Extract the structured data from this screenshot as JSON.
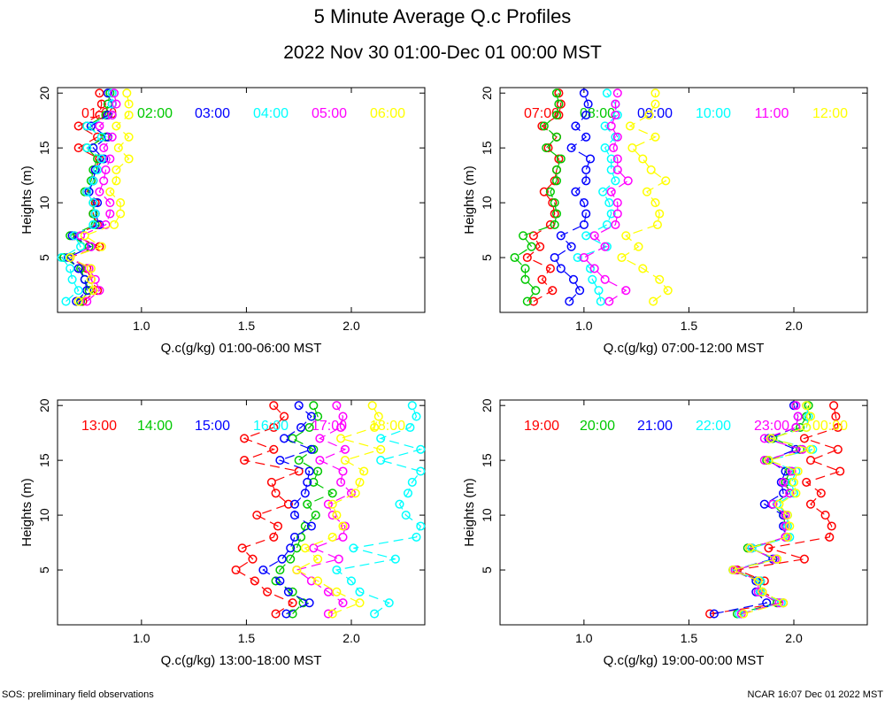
{
  "figure": {
    "title": "5 Minute Average Q.c Profiles",
    "subtitle": "2022 Nov 30 01:00-Dec 01 00:00 MST",
    "footer_left": "SOS: preliminary field observations",
    "footer_right": "NCAR 16:07 Dec 01 2022 MST"
  },
  "chart_data": [
    {
      "type": "line",
      "marker": "circle",
      "title": "",
      "xlabel": "Q.c(g/kg) 01:00-06:00 MST",
      "ylabel": "Heights (m)",
      "xlim": [
        0.6,
        2.35
      ],
      "ylim": [
        0,
        20.5
      ],
      "xticks": [
        "1.0",
        "1.5",
        "2.0"
      ],
      "yticks": [
        "5",
        "10",
        "15",
        "20"
      ],
      "heights": [
        1,
        2,
        3,
        4,
        5,
        6,
        7,
        8,
        9,
        10,
        11,
        12,
        13,
        14,
        15,
        16,
        17,
        18,
        19,
        20
      ],
      "series": [
        {
          "name": "01:00",
          "color": "#ff0000",
          "values": [
            0.72,
            0.79,
            0.76,
            0.74,
            0.66,
            0.8,
            0.68,
            0.79,
            0.77,
            0.78,
            0.74,
            0.77,
            0.78,
            0.8,
            0.7,
            0.79,
            0.7,
            0.8,
            0.81,
            0.8
          ]
        },
        {
          "name": "02:00",
          "color": "#00c800",
          "values": [
            0.71,
            0.75,
            0.73,
            0.71,
            0.63,
            0.75,
            0.66,
            0.78,
            0.77,
            0.77,
            0.73,
            0.76,
            0.77,
            0.79,
            0.74,
            0.83,
            0.74,
            0.83,
            0.84,
            0.85
          ]
        },
        {
          "name": "03:00",
          "color": "#0000ff",
          "values": [
            0.69,
            0.74,
            0.73,
            0.7,
            0.65,
            0.76,
            0.67,
            0.8,
            0.78,
            0.79,
            0.75,
            0.77,
            0.78,
            0.82,
            0.77,
            0.84,
            0.76,
            0.84,
            0.86,
            0.84
          ]
        },
        {
          "name": "04:00",
          "color": "#00ffff",
          "values": [
            0.64,
            0.7,
            0.67,
            0.66,
            0.62,
            0.71,
            0.68,
            0.77,
            0.78,
            0.77,
            0.74,
            0.77,
            0.79,
            0.81,
            0.74,
            0.81,
            0.74,
            0.86,
            0.86,
            0.86
          ]
        },
        {
          "name": "05:00",
          "color": "#ff00ff",
          "values": [
            0.74,
            0.8,
            0.78,
            0.75,
            0.66,
            0.76,
            0.71,
            0.83,
            0.85,
            0.85,
            0.8,
            0.82,
            0.83,
            0.85,
            0.82,
            0.86,
            0.8,
            0.86,
            0.88,
            0.87
          ]
        },
        {
          "name": "06:00",
          "color": "#ffff00",
          "values": [
            0.7,
            0.77,
            0.76,
            0.76,
            0.66,
            0.81,
            0.73,
            0.87,
            0.9,
            0.9,
            0.85,
            0.88,
            0.88,
            0.94,
            0.89,
            0.94,
            0.88,
            0.94,
            0.94,
            0.93
          ]
        }
      ]
    },
    {
      "type": "line",
      "marker": "circle",
      "title": "",
      "xlabel": "Q.c(g/kg) 07:00-12:00 MST",
      "ylabel": "Heights (m)",
      "xlim": [
        0.6,
        2.35
      ],
      "ylim": [
        0,
        20.5
      ],
      "xticks": [
        "1.0",
        "1.5",
        "2.0"
      ],
      "yticks": [
        "5",
        "10",
        "15",
        "20"
      ],
      "heights": [
        1,
        2,
        3,
        4,
        5,
        6,
        7,
        8,
        9,
        10,
        11,
        12,
        13,
        14,
        15,
        16,
        17,
        18,
        19,
        20
      ],
      "series": [
        {
          "name": "07:00",
          "color": "#ff0000",
          "values": [
            0.76,
            0.85,
            0.8,
            0.84,
            0.73,
            0.79,
            0.76,
            0.84,
            0.86,
            0.85,
            0.81,
            0.86,
            0.87,
            0.88,
            0.83,
            0.87,
            0.8,
            0.88,
            0.89,
            0.88
          ]
        },
        {
          "name": "08:00",
          "color": "#00c800",
          "values": [
            0.73,
            0.77,
            0.72,
            0.72,
            0.67,
            0.75,
            0.71,
            0.86,
            0.87,
            0.86,
            0.84,
            0.87,
            0.87,
            0.89,
            0.82,
            0.87,
            0.81,
            0.87,
            0.88,
            0.87
          ]
        },
        {
          "name": "09:00",
          "color": "#0000ff",
          "values": [
            0.93,
            0.98,
            0.95,
            0.89,
            0.86,
            0.94,
            0.89,
            1.0,
            1.01,
            1.0,
            0.96,
            1.01,
            1.01,
            1.03,
            0.94,
            1.01,
            0.96,
            1.01,
            1.02,
            1.0
          ]
        },
        {
          "name": "10:00",
          "color": "#00ffff",
          "values": [
            1.08,
            1.07,
            1.04,
            1.03,
            0.97,
            1.11,
            1.01,
            1.11,
            1.13,
            1.12,
            1.09,
            1.15,
            1.13,
            1.13,
            1.1,
            1.15,
            1.1,
            1.16,
            1.15,
            1.11
          ]
        },
        {
          "name": "11:00",
          "color": "#ff00ff",
          "values": [
            1.12,
            1.2,
            1.1,
            1.05,
            1.0,
            1.1,
            1.05,
            1.15,
            1.16,
            1.16,
            1.13,
            1.21,
            1.16,
            1.16,
            1.14,
            1.16,
            1.13,
            1.15,
            1.15,
            1.16
          ]
        },
        {
          "name": "12:00",
          "color": "#ffff00",
          "values": [
            1.33,
            1.4,
            1.36,
            1.28,
            1.18,
            1.26,
            1.2,
            1.35,
            1.36,
            1.34,
            1.3,
            1.39,
            1.32,
            1.28,
            1.23,
            1.34,
            1.22,
            1.31,
            1.34,
            1.34
          ]
        }
      ]
    },
    {
      "type": "line",
      "marker": "circle",
      "title": "",
      "xlabel": "Q.c(g/kg) 13:00-18:00 MST",
      "ylabel": "Heights (m)",
      "xlim": [
        0.6,
        2.35
      ],
      "ylim": [
        0,
        20.5
      ],
      "xticks": [
        "1.0",
        "1.5",
        "2.0"
      ],
      "yticks": [
        "5",
        "10",
        "15",
        "20"
      ],
      "heights": [
        1,
        2,
        3,
        4,
        5,
        6,
        7,
        8,
        9,
        10,
        11,
        12,
        13,
        14,
        15,
        16,
        17,
        18,
        19,
        20
      ],
      "series": [
        {
          "name": "13:00",
          "color": "#ff0000",
          "values": [
            1.64,
            1.72,
            1.6,
            1.54,
            1.45,
            1.53,
            1.48,
            1.63,
            1.65,
            1.55,
            1.7,
            1.64,
            1.62,
            1.75,
            1.49,
            1.63,
            1.49,
            1.63,
            1.68,
            1.63
          ]
        },
        {
          "name": "14:00",
          "color": "#00c800",
          "values": [
            1.72,
            1.77,
            1.72,
            1.64,
            1.66,
            1.71,
            1.74,
            1.76,
            1.78,
            1.83,
            1.79,
            1.91,
            1.82,
            1.84,
            1.75,
            1.82,
            1.72,
            1.8,
            1.84,
            1.82
          ]
        },
        {
          "name": "15:00",
          "color": "#0000ff",
          "values": [
            1.69,
            1.8,
            1.7,
            1.66,
            1.58,
            1.67,
            1.71,
            1.73,
            1.81,
            1.73,
            1.73,
            1.78,
            1.79,
            1.8,
            1.66,
            1.81,
            1.68,
            1.76,
            1.81,
            1.75
          ]
        },
        {
          "name": "16:00",
          "color": "#00ffff",
          "values": [
            2.11,
            2.18,
            2.04,
            2.0,
            1.93,
            2.21,
            2.01,
            2.31,
            2.33,
            2.26,
            2.23,
            2.27,
            2.29,
            2.33,
            2.14,
            2.33,
            2.14,
            2.28,
            2.31,
            2.29
          ]
        },
        {
          "name": "17:00",
          "color": "#ff00ff",
          "values": [
            1.89,
            1.96,
            1.89,
            1.81,
            1.74,
            1.94,
            1.82,
            1.96,
            1.97,
            1.91,
            1.89,
            2.0,
            1.95,
            1.96,
            1.85,
            1.97,
            1.85,
            1.95,
            1.96,
            1.93
          ]
        },
        {
          "name": "18:00",
          "color": "#ffff00",
          "values": [
            1.91,
            2.04,
            1.93,
            1.84,
            1.74,
            1.84,
            1.78,
            1.91,
            1.96,
            1.93,
            1.91,
            2.02,
            2.04,
            2.06,
            1.97,
            2.14,
            1.95,
            2.11,
            2.13,
            2.1
          ]
        }
      ]
    },
    {
      "type": "line",
      "marker": "circle",
      "title": "",
      "xlabel": "Q.c(g/kg) 19:00-00:00 MST",
      "ylabel": "Heights (m)",
      "xlim": [
        0.6,
        2.35
      ],
      "ylim": [
        0,
        20.5
      ],
      "xticks": [
        "1.0",
        "1.5",
        "2.0"
      ],
      "yticks": [
        "5",
        "10",
        "15",
        "20"
      ],
      "heights": [
        1,
        2,
        3,
        4,
        5,
        6,
        7,
        8,
        9,
        10,
        11,
        12,
        13,
        14,
        15,
        16,
        17,
        18,
        19,
        20
      ],
      "series": [
        {
          "name": "19:00",
          "color": "#ff0000",
          "values": [
            1.6,
            1.95,
            1.85,
            1.86,
            1.73,
            2.05,
            1.88,
            2.17,
            2.18,
            2.15,
            2.08,
            2.13,
            2.06,
            2.22,
            2.08,
            2.21,
            2.05,
            2.21,
            2.2,
            2.19
          ]
        },
        {
          "name": "20:00",
          "color": "#00c800",
          "values": [
            1.73,
            1.92,
            1.84,
            1.84,
            1.72,
            1.92,
            1.78,
            1.97,
            1.96,
            1.95,
            1.9,
            1.98,
            1.96,
            1.98,
            1.87,
            2.03,
            1.9,
            2.03,
            2.06,
            2.07
          ]
        },
        {
          "name": "21:00",
          "color": "#0000ff",
          "values": [
            1.62,
            1.87,
            1.82,
            1.82,
            1.71,
            1.9,
            1.8,
            1.96,
            1.95,
            1.95,
            1.86,
            1.95,
            1.94,
            1.96,
            1.88,
            2.01,
            1.88,
            2.01,
            2.02,
            2.0
          ]
        },
        {
          "name": "22:00",
          "color": "#00ffff",
          "values": [
            1.74,
            1.94,
            1.84,
            1.84,
            1.71,
            1.91,
            1.8,
            1.98,
            1.97,
            1.97,
            1.92,
            2.0,
            1.99,
            2.01,
            1.88,
            2.09,
            1.89,
            2.06,
            2.07,
            2.06
          ]
        },
        {
          "name": "23:00",
          "color": "#ff00ff",
          "values": [
            1.75,
            1.93,
            1.83,
            1.83,
            1.72,
            1.91,
            1.79,
            1.96,
            1.96,
            1.96,
            1.9,
            1.98,
            1.95,
            1.99,
            1.86,
            2.04,
            1.86,
            2.01,
            2.02,
            2.01
          ]
        },
        {
          "name": "00:00",
          "color": "#ffff00",
          "values": [
            1.76,
            1.95,
            1.85,
            1.83,
            1.71,
            1.92,
            1.79,
            1.97,
            1.98,
            1.97,
            1.93,
            2.01,
            2.0,
            2.02,
            1.88,
            2.08,
            1.89,
            2.06,
            2.08,
            2.06
          ]
        }
      ]
    }
  ]
}
